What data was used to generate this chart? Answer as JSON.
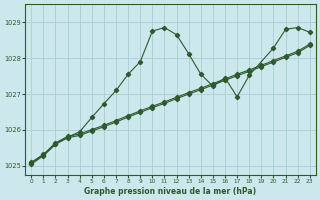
{
  "title": "Graphe pression niveau de la mer (hPa)",
  "bg_color": "#cce8ed",
  "grid_color": "#aacdd4",
  "line_color": "#2d5a2d",
  "xlim": [
    -0.5,
    23.5
  ],
  "ylim": [
    1024.75,
    1029.5
  ],
  "yticks": [
    1025,
    1026,
    1027,
    1028,
    1029
  ],
  "xticks": [
    0,
    1,
    2,
    3,
    4,
    5,
    6,
    7,
    8,
    9,
    10,
    11,
    12,
    13,
    14,
    15,
    16,
    17,
    18,
    19,
    20,
    21,
    22,
    23
  ],
  "line1_y": [
    1025.05,
    1025.28,
    1025.6,
    1025.78,
    1025.85,
    1025.97,
    1026.09,
    1026.22,
    1026.36,
    1026.49,
    1026.62,
    1026.74,
    1026.87,
    1027.0,
    1027.12,
    1027.25,
    1027.38,
    1027.51,
    1027.63,
    1027.76,
    1027.89,
    1028.02,
    1028.15,
    1028.35
  ],
  "line2_y": [
    1025.1,
    1025.32,
    1025.64,
    1025.82,
    1025.89,
    1026.01,
    1026.13,
    1026.26,
    1026.4,
    1026.53,
    1026.66,
    1026.78,
    1026.91,
    1027.04,
    1027.16,
    1027.29,
    1027.42,
    1027.55,
    1027.67,
    1027.8,
    1027.93,
    1028.06,
    1028.19,
    1028.39
  ],
  "line3_x": [
    0,
    1,
    2,
    3,
    4,
    5,
    6,
    7,
    8,
    9,
    10,
    11,
    12,
    13,
    14,
    15,
    16,
    17,
    18,
    20,
    21,
    22,
    23
  ],
  "line3_y": [
    1025.08,
    1025.3,
    1025.62,
    1025.8,
    1025.95,
    1026.35,
    1026.73,
    1027.1,
    1027.55,
    1027.9,
    1028.75,
    1028.85,
    1028.65,
    1028.12,
    1027.55,
    1027.22,
    1027.45,
    1026.92,
    1027.52,
    1028.28,
    1028.8,
    1028.85,
    1028.72
  ]
}
